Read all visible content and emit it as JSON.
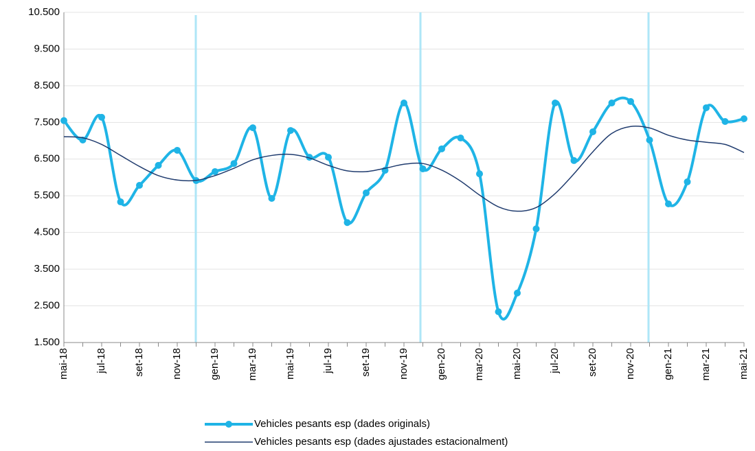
{
  "chart_data": {
    "type": "line",
    "smooth": true,
    "grid": true,
    "legend": "bottom",
    "categories": [
      "mai-18",
      null,
      "jul-18",
      null,
      "set-18",
      null,
      "nov-18",
      null,
      "gen-19",
      null,
      "mar-19",
      null,
      "mai-19",
      null,
      "jul-19",
      null,
      "set-19",
      null,
      "nov-19",
      null,
      "gen-20",
      null,
      "mar-20",
      null,
      "mai-20",
      null,
      "jul-20",
      null,
      "set-20",
      null,
      "nov-20",
      null,
      "gen-21",
      null,
      "mar-21",
      null,
      "mai-21"
    ],
    "series": [
      {
        "name": "Vehicles pesants esp (dades originals)",
        "color": "#1fb4e6",
        "markers": true,
        "values": [
          7550,
          7020,
          7640,
          5335,
          5785,
          6330,
          6740,
          5915,
          6160,
          6380,
          7355,
          5430,
          7280,
          6550,
          6550,
          4770,
          5580,
          6195,
          8030,
          6235,
          6780,
          7075,
          6100,
          2340,
          2850,
          4600,
          8030,
          6460,
          7245,
          8030,
          8070,
          7020,
          5280,
          5880,
          7900,
          7525,
          7600
        ]
      },
      {
        "name": "Vehicles pesants esp (dades ajustades estacionalment)",
        "color": "#1f3b6e",
        "markers": false,
        "values": [
          7110,
          7080,
          6900,
          6600,
          6300,
          6050,
          5930,
          5920,
          6050,
          6250,
          6480,
          6600,
          6630,
          6530,
          6330,
          6180,
          6160,
          6250,
          6360,
          6380,
          6200,
          5900,
          5520,
          5200,
          5080,
          5180,
          5560,
          6100,
          6700,
          7200,
          7390,
          7350,
          7150,
          7020,
          6960,
          6900,
          6680
        ]
      }
    ],
    "ylim": [
      1500,
      10500
    ],
    "yticks": [
      {
        "value": 1500,
        "label": "1.500"
      },
      {
        "value": 2500,
        "label": "2.500"
      },
      {
        "value": 3500,
        "label": "3.500"
      },
      {
        "value": 4500,
        "label": "4.500"
      },
      {
        "value": 5500,
        "label": "5.500"
      },
      {
        "value": 6500,
        "label": "6.500"
      },
      {
        "value": 7500,
        "label": "7.500"
      },
      {
        "value": 8500,
        "label": "8.500"
      },
      {
        "value": 9500,
        "label": "9.500"
      },
      {
        "value": 10500,
        "label": "10.500"
      }
    ]
  }
}
